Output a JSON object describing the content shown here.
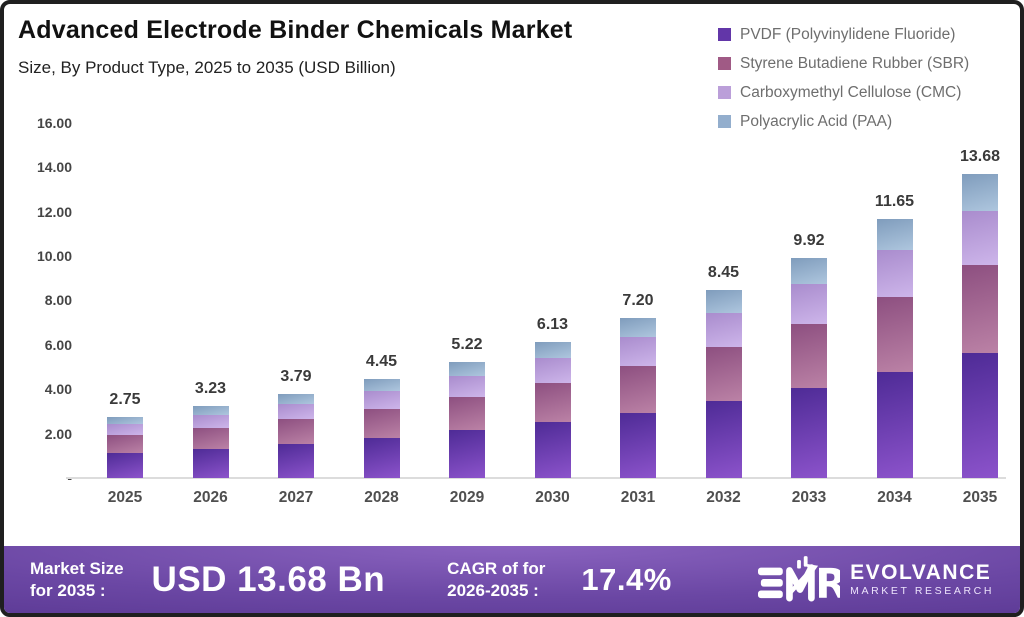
{
  "header": {
    "title": "Advanced Electrode Binder Chemicals Market",
    "subtitle": "Size, By Product Type, 2025 to 2035 (USD Billion)"
  },
  "chart_data": {
    "type": "bar",
    "stacked": true,
    "title": "Advanced Electrode Binder Chemicals Market",
    "subtitle": "Size, By Product Type, 2025 to 2035 (USD Billion)",
    "unit": "USD Billion",
    "categories": [
      "2025",
      "2026",
      "2027",
      "2028",
      "2029",
      "2030",
      "2031",
      "2032",
      "2033",
      "2034",
      "2035"
    ],
    "totals": [
      2.75,
      3.23,
      3.79,
      4.45,
      5.22,
      6.13,
      7.2,
      8.45,
      9.92,
      11.65,
      13.68
    ],
    "total_labels": [
      "2.75",
      "3.23",
      "3.79",
      "4.45",
      "5.22",
      "6.13",
      "7.20",
      "8.45",
      "9.92",
      "11.65",
      "13.68"
    ],
    "series": [
      {
        "name": "PVDF (Polyvinylidene Fluoride)",
        "values": [
          1.13,
          1.32,
          1.55,
          1.82,
          2.14,
          2.51,
          2.95,
          3.46,
          4.07,
          4.78,
          5.61
        ],
        "legend_color": "#6236a8",
        "gradient": [
          "#4e2b96",
          "#8c53cb"
        ]
      },
      {
        "name": "Styrene Butadiene Rubber (SBR)",
        "values": [
          0.8,
          0.94,
          1.1,
          1.29,
          1.51,
          1.78,
          2.09,
          2.45,
          2.88,
          3.38,
          3.97
        ],
        "legend_color": "#a05a85",
        "gradient": [
          "#8d4f80",
          "#bb82a6"
        ]
      },
      {
        "name": "Carboxymethyl Cellulose (CMC)",
        "values": [
          0.5,
          0.58,
          0.68,
          0.8,
          0.94,
          1.1,
          1.3,
          1.52,
          1.79,
          2.1,
          2.46
        ],
        "legend_color": "#bb9fd9",
        "gradient": [
          "#a98ccd",
          "#cdb5ea"
        ]
      },
      {
        "name": "Polyacrylic Acid (PAA)",
        "values": [
          0.32,
          0.39,
          0.46,
          0.54,
          0.63,
          0.74,
          0.86,
          1.02,
          1.18,
          1.39,
          1.64
        ],
        "legend_color": "#93aecd",
        "gradient": [
          "#7f9cbc",
          "#aec6de"
        ]
      }
    ],
    "ylim": [
      0,
      16
    ],
    "yticks": [
      {
        "label": "16.00",
        "value": 16
      },
      {
        "label": "14.00",
        "value": 14
      },
      {
        "label": "12.00",
        "value": 12
      },
      {
        "label": "10.00",
        "value": 10
      },
      {
        "label": "8.00",
        "value": 8
      },
      {
        "label": "6.00",
        "value": 6
      },
      {
        "label": "4.00",
        "value": 4
      },
      {
        "label": "2.00",
        "value": 2
      },
      {
        "label": "-",
        "value": 0
      }
    ],
    "grid": false,
    "legend_position": "top-right"
  },
  "footer": {
    "market_size_label_line1": "Market Size",
    "market_size_label_line2": "for 2035 :",
    "market_size_value": "USD 13.68 Bn",
    "cagr_label_line1": "CAGR of for",
    "cagr_label_line2": "2026-2035 :",
    "cagr_value": "17.4%",
    "brand": {
      "name": "EVOLVANCE",
      "tagline": "MARKET RESEARCH"
    }
  },
  "colors": {
    "card_border": "#1f1f1f",
    "axis_line": "#dcdcdc",
    "tick_text": "#454545",
    "category_text": "#4f4f4f",
    "legend_text": "#6e6e6e",
    "total_label_text": "#3a3a3a",
    "footer_gradient_top": "#8a63bf",
    "footer_gradient_bottom": "#502f89",
    "footer_text": "#ffffff"
  }
}
